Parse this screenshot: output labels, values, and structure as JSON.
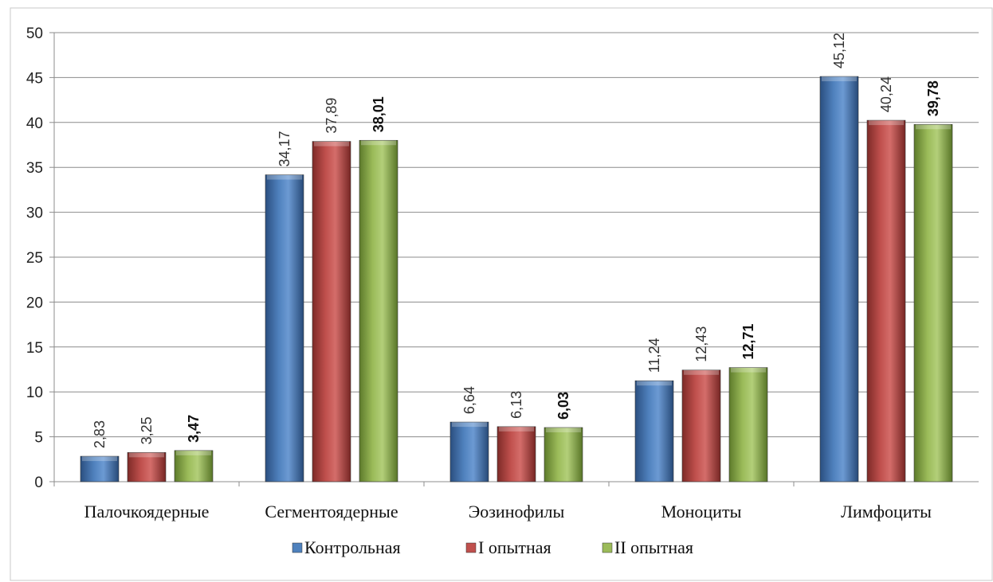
{
  "chart_data": {
    "type": "bar",
    "categories": [
      "Палочкоядерные",
      "Сегментоядерные",
      "Эозинофилы",
      "Моноциты",
      "Лимфоциты"
    ],
    "series": [
      {
        "name": "Контрольная",
        "color": "#4f81bd",
        "values": [
          2.83,
          34.17,
          6.64,
          11.24,
          45.12
        ],
        "labels": [
          "2,83",
          "34,17",
          "6,64",
          "11,24",
          "45,12"
        ]
      },
      {
        "name": "I опытная",
        "color": "#c0504d",
        "values": [
          3.25,
          37.89,
          6.13,
          12.43,
          40.24
        ],
        "labels": [
          "3,25",
          "37,89",
          "6,13",
          "12,43",
          "40,24"
        ]
      },
      {
        "name": "II опытная",
        "color": "#9bbb59",
        "values": [
          3.47,
          38.01,
          6.03,
          12.71,
          39.78
        ],
        "labels": [
          "3,47",
          "38,01",
          "6,03",
          "12,71",
          "39,78"
        ]
      }
    ],
    "ylim": [
      0,
      50
    ],
    "yticks": [
      0,
      5,
      10,
      15,
      20,
      25,
      30,
      35,
      40,
      45,
      50
    ],
    "grid": true,
    "legend_position": "bottom"
  }
}
